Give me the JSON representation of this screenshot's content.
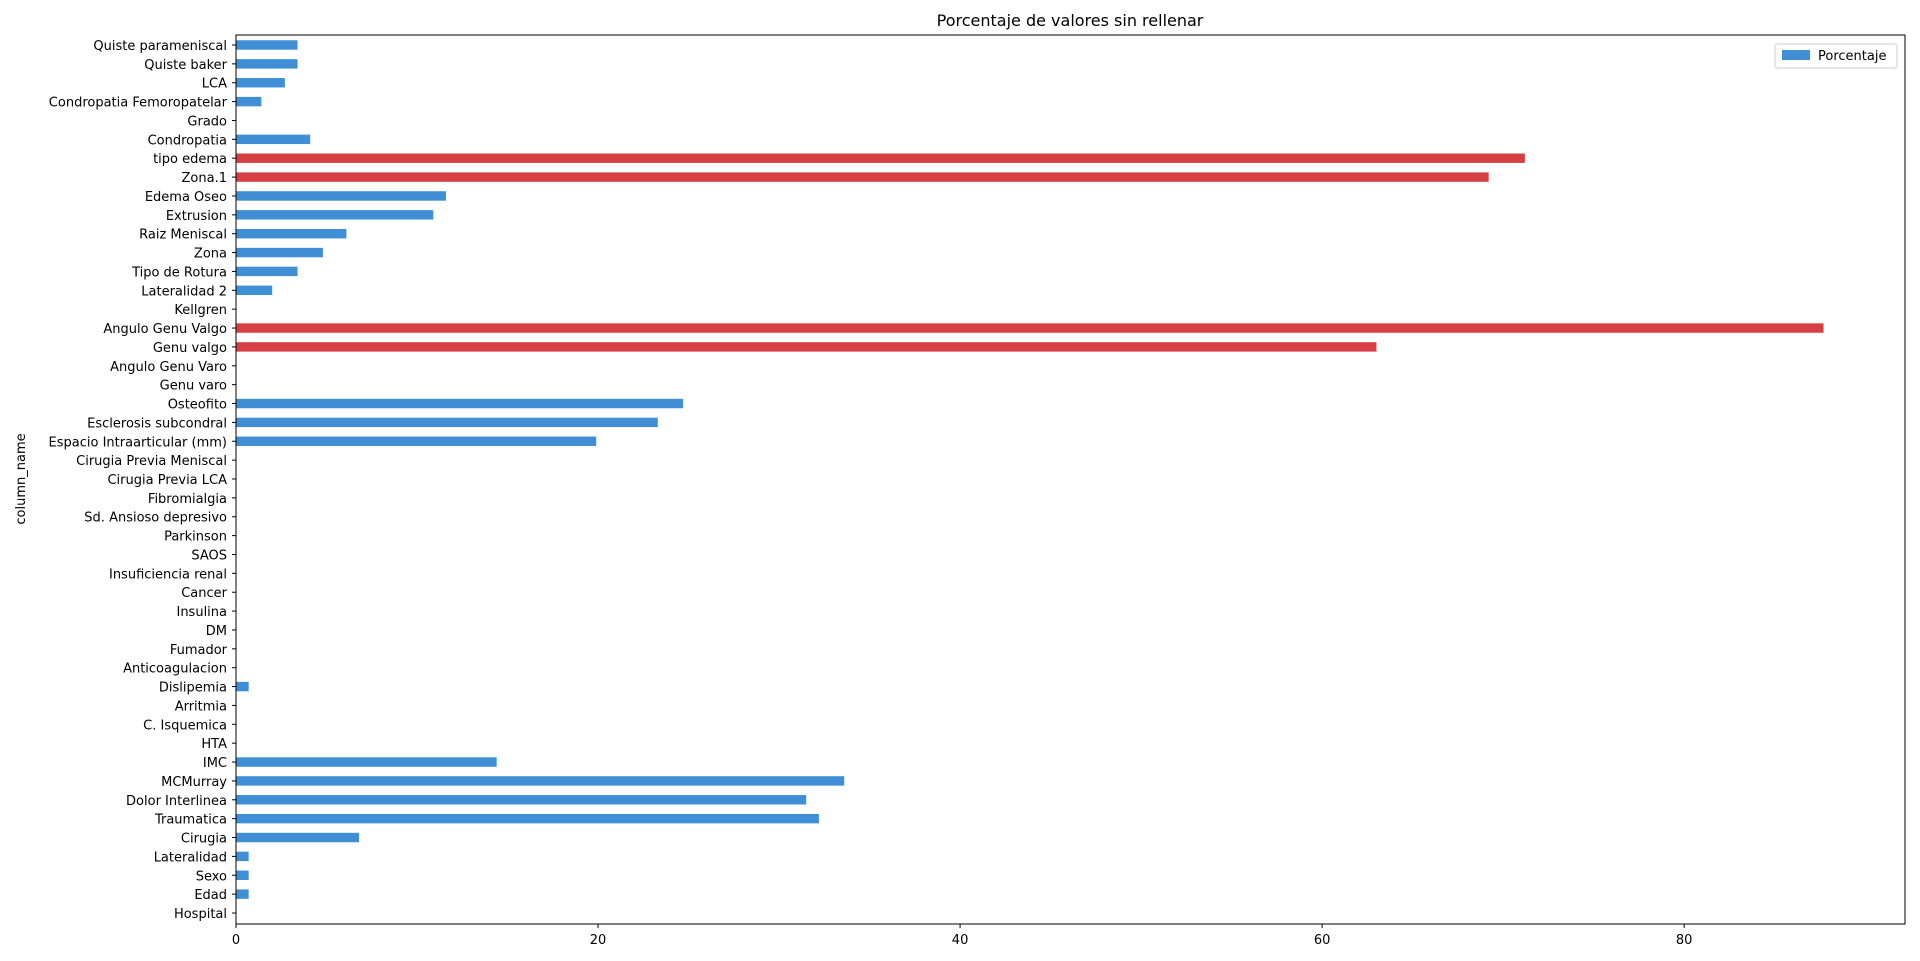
{
  "chart_data": {
    "type": "bar",
    "orientation": "horizontal",
    "title": "Porcentaje de valores sin rellenar",
    "xlabel": "",
    "ylabel": "column_name",
    "xlim": [
      0,
      92.2
    ],
    "xticks": [
      0,
      20,
      40,
      60,
      80
    ],
    "grid": false,
    "legend": {
      "placement": "top-right",
      "entries": [
        "Porcentaje"
      ]
    },
    "colors": {
      "normal": "#3f8ed6",
      "highlight": "#d64045"
    },
    "categories": [
      "Quiste parameniscal",
      "Quiste baker",
      "LCA",
      "Condropatia Femoropatelar",
      "Grado",
      "Condropatia",
      "tipo edema",
      "Zona.1",
      "Edema Oseo",
      "Extrusion",
      "Raiz Meniscal",
      "Zona",
      "Tipo de Rotura",
      "Lateralidad 2",
      "Kellgren",
      "Angulo Genu Valgo",
      "Genu valgo",
      "Angulo Genu Varo",
      "Genu varo",
      "Osteofito",
      "Esclerosis subcondral",
      "Espacio Intraarticular (mm)",
      "Cirugia Previa Meniscal",
      "Cirugia Previa LCA",
      "Fibromialgia",
      "Sd. Ansioso depresivo",
      "Parkinson",
      "SAOS",
      "Insuficiencia renal",
      "Cancer",
      "Insulina",
      "DM",
      "Fumador",
      "Anticoagulacion",
      "Dislipemia",
      "Arritmia",
      "C. Isquemica",
      "HTA",
      "IMC",
      "MCMurray",
      "Dolor Interlinea",
      "Traumatica",
      "Cirugia",
      "Lateralidad",
      "Sexo",
      "Edad",
      "Hospital"
    ],
    "series": [
      {
        "name": "Porcentaje",
        "values": [
          3.4,
          3.4,
          2.7,
          1.4,
          0,
          4.1,
          71.2,
          69.2,
          11.6,
          10.9,
          6.1,
          4.8,
          3.4,
          2.0,
          0,
          87.7,
          63.0,
          0,
          0,
          24.7,
          23.3,
          19.9,
          0,
          0,
          0,
          0,
          0,
          0,
          0,
          0,
          0,
          0,
          0,
          0,
          0.7,
          0,
          0,
          0,
          14.4,
          33.6,
          31.5,
          32.2,
          6.8,
          0.7,
          0.7,
          0.7,
          0
        ]
      }
    ],
    "highlighted": [
      "tipo edema",
      "Zona.1",
      "Angulo Genu Valgo",
      "Genu valgo"
    ]
  }
}
